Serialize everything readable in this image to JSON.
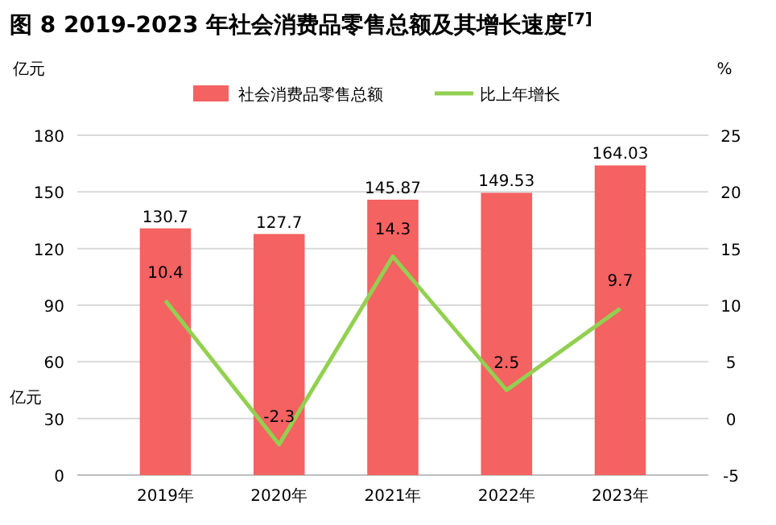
{
  "chart_data": {
    "type": "bar",
    "title": "图 8 2019-2023 年社会消费品零售总额及其增长速度$^{[7]}$",
    "ylabel": "亿元",
    "y2label": "%",
    "annotations": [
      "亿元"
    ],
    "categories": [
      "2019年",
      "2020年",
      "2021年",
      "2022年",
      "2023年"
    ],
    "series": [
      {
        "name": "社会消费品零售总额",
        "color": "#f46262",
        "values": [
          130.7,
          127.7,
          145.87,
          149.53,
          164.03
        ]
      },
      {
        "name": "比上年增长",
        "type": "line",
        "axis": "y2",
        "color": "#92d050",
        "values": [
          10.4,
          -2.3,
          14.3,
          2.5,
          9.7
        ]
      }
    ],
    "ylim": [
      0,
      180
    ],
    "yticks": [
      0,
      30,
      60,
      90,
      120,
      150,
      180
    ],
    "y2lim": [
      -5,
      25
    ],
    "y2ticks": [
      -5,
      0,
      5,
      10,
      15,
      20,
      25
    ],
    "grid": "y",
    "legend": "top",
    "data_labels": true,
    "marker": "none"
  }
}
